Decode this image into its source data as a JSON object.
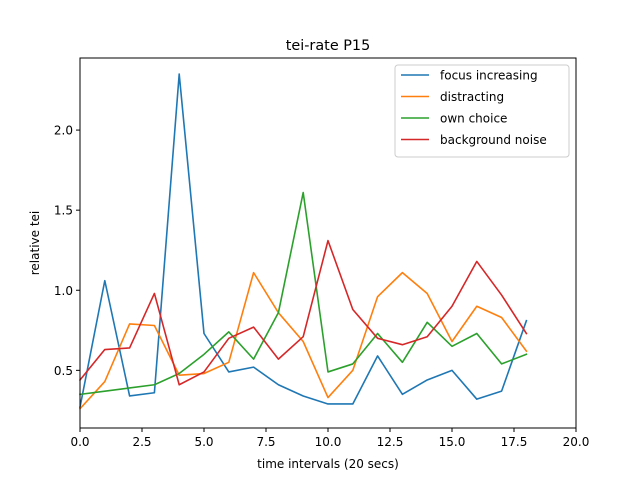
{
  "chart_data": {
    "type": "line",
    "title": "tei-rate P15",
    "xlabel": "time intervals (20 secs)",
    "ylabel": "relative tei",
    "xlim": [
      0,
      20
    ],
    "ylim": [
      0.14,
      2.45
    ],
    "x_ticks": [
      0.0,
      2.5,
      5.0,
      7.5,
      10.0,
      12.5,
      15.0,
      17.5,
      20.0
    ],
    "x_tick_labels": [
      "0.0",
      "2.5",
      "5.0",
      "7.5",
      "10.0",
      "12.5",
      "15.0",
      "17.5",
      "20.0"
    ],
    "y_ticks": [
      0.5,
      1.0,
      1.5,
      2.0
    ],
    "y_tick_labels": [
      "0.5",
      "1.0",
      "1.5",
      "2.0"
    ],
    "grid": false,
    "legend_position": "top-right",
    "x": [
      0,
      1,
      2,
      3,
      4,
      5,
      6,
      7,
      8,
      9,
      10,
      11,
      12,
      13,
      14,
      15,
      16,
      17,
      18
    ],
    "series": [
      {
        "name": "focus increasing",
        "color": "#1f77b4",
        "values": [
          0.27,
          1.06,
          0.34,
          0.36,
          2.35,
          0.73,
          0.49,
          0.52,
          0.41,
          0.34,
          0.29,
          0.29,
          0.59,
          0.35,
          0.44,
          0.5,
          0.32,
          0.37,
          0.81
        ]
      },
      {
        "name": "distracting",
        "color": "#ff7f0e",
        "values": [
          0.26,
          0.43,
          0.79,
          0.78,
          0.47,
          0.48,
          0.55,
          1.11,
          0.86,
          0.68,
          0.33,
          0.5,
          0.96,
          1.11,
          0.98,
          0.68,
          0.9,
          0.83,
          0.62
        ]
      },
      {
        "name": "own choice",
        "color": "#2ca02c",
        "values": [
          0.35,
          0.37,
          0.39,
          0.41,
          0.48,
          0.6,
          0.74,
          0.57,
          0.86,
          1.61,
          0.49,
          0.54,
          0.73,
          0.55,
          0.8,
          0.65,
          0.73,
          0.54,
          0.6
        ]
      },
      {
        "name": "background noise",
        "color": "#d62728",
        "values": [
          0.44,
          0.63,
          0.64,
          0.98,
          0.41,
          0.49,
          0.7,
          0.77,
          0.57,
          0.71,
          1.31,
          0.88,
          0.7,
          0.66,
          0.71,
          0.9,
          1.18,
          0.97,
          0.73
        ]
      }
    ]
  }
}
